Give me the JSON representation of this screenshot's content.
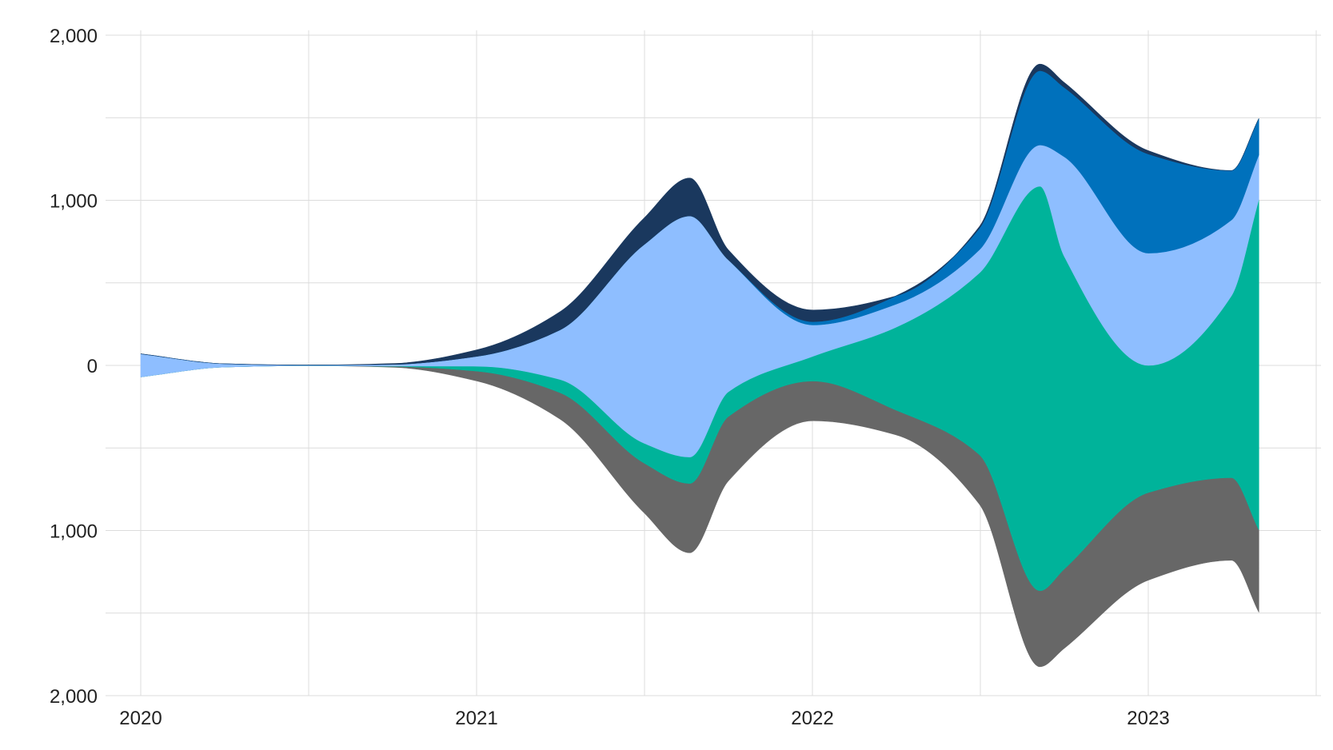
{
  "chart_data": {
    "type": "area",
    "subtype": "streamgraph",
    "title": "",
    "xlabel": "",
    "ylabel": "",
    "x_ticks": [
      "2020",
      "2021",
      "2022",
      "2023"
    ],
    "y_ticks": [
      "2,000",
      "1,000",
      "0",
      "1,000",
      "2,000"
    ],
    "y_tick_values": [
      2000,
      1000,
      0,
      -1000,
      -2000
    ],
    "ylim": [
      -2000,
      2000
    ],
    "xlim": [
      "2020-01-01",
      "2023-07-01"
    ],
    "grid": true,
    "legend": "none",
    "x": [
      "2020-01-01",
      "2020-04-01",
      "2020-07-01",
      "2020-10-01",
      "2021-01-01",
      "2021-04-01",
      "2021-07-01",
      "2021-08-20",
      "2021-10-01",
      "2022-01-01",
      "2022-04-01",
      "2022-07-01",
      "2022-09-05",
      "2022-10-01",
      "2023-01-01",
      "2023-04-01",
      "2023-05-01"
    ],
    "series": [
      {
        "color": "#676767",
        "values": [
          0,
          0,
          0,
          5,
          60,
          160,
          300,
          420,
          390,
          240,
          150,
          300,
          460,
          480,
          530,
          500,
          500
        ]
      },
      {
        "color": "#00b39a",
        "values": [
          0,
          0,
          0,
          2,
          30,
          80,
          120,
          160,
          150,
          150,
          500,
          1100,
          2450,
          1900,
          770,
          1100,
          2000
        ]
      },
      {
        "color": "#8ebeff",
        "values": [
          140,
          20,
          4,
          10,
          60,
          300,
          1200,
          1460,
          800,
          190,
          140,
          140,
          250,
          600,
          680,
          460,
          270
        ]
      },
      {
        "color": "#0071bc",
        "values": [
          0,
          0,
          0,
          0,
          0,
          0,
          0,
          0,
          0,
          20,
          50,
          130,
          450,
          420,
          600,
          300,
          220
        ]
      },
      {
        "color": "#1a385e",
        "values": [
          0,
          0,
          0,
          5,
          40,
          110,
          160,
          230,
          60,
          70,
          0,
          10,
          40,
          30,
          20,
          0,
          0
        ]
      }
    ]
  }
}
